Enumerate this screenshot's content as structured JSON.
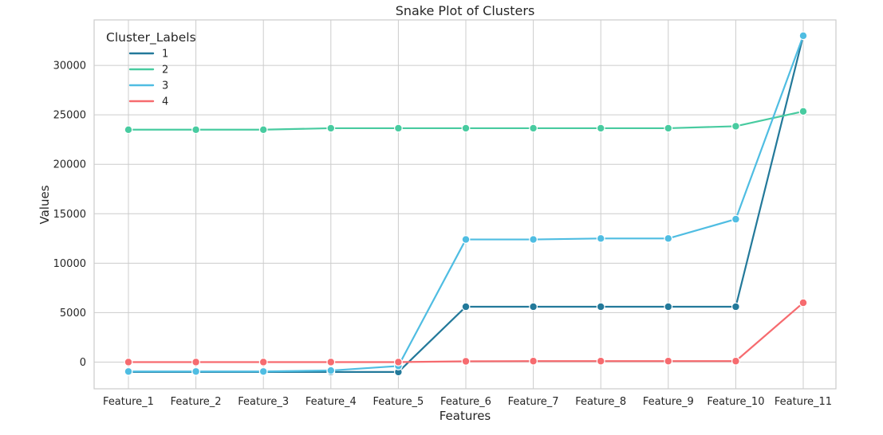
{
  "chart_data": {
    "type": "line",
    "title": "Snake Plot of Clusters",
    "xlabel": "Features",
    "ylabel": "Values",
    "categories": [
      "Feature_1",
      "Feature_2",
      "Feature_3",
      "Feature_4",
      "Feature_5",
      "Feature_6",
      "Feature_7",
      "Feature_8",
      "Feature_9",
      "Feature_10",
      "Feature_11"
    ],
    "yticks": [
      0,
      5000,
      10000,
      15000,
      20000,
      25000,
      30000
    ],
    "ylim": [
      -2700,
      34600
    ],
    "grid": true,
    "legend": {
      "title": "Cluster_Labels",
      "placement": "top-left"
    },
    "series": [
      {
        "name": "1",
        "color": "#23799a",
        "values": [
          -1000,
          -1000,
          -1000,
          -1000,
          -1000,
          5600,
          5600,
          5600,
          5600,
          5600,
          33000
        ]
      },
      {
        "name": "2",
        "color": "#48cba0",
        "values": [
          23500,
          23500,
          23500,
          23650,
          23650,
          23650,
          23650,
          23650,
          23650,
          23850,
          25350
        ]
      },
      {
        "name": "3",
        "color": "#4fbde2",
        "values": [
          -950,
          -950,
          -950,
          -850,
          -400,
          12400,
          12400,
          12500,
          12500,
          14450,
          33000
        ]
      },
      {
        "name": "4",
        "color": "#f66b6f",
        "values": [
          0,
          0,
          0,
          0,
          0,
          80,
          100,
          100,
          100,
          100,
          6000
        ]
      }
    ]
  }
}
